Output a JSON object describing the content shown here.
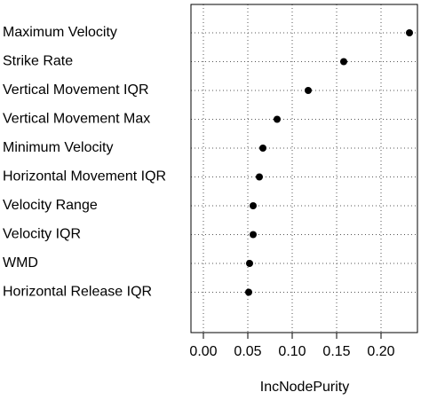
{
  "chart_data": {
    "type": "dot",
    "x_label": "IncNodePurity",
    "categories": [
      "Maximum Velocity",
      "Strike Rate",
      "Vertical Movement IQR",
      "Vertical Movement Max",
      "Minimum Velocity",
      "Horizontal Movement IQR",
      "Velocity Range",
      "Velocity IQR",
      "WMD",
      "Horizontal Release IQR"
    ],
    "values": [
      0.232,
      0.158,
      0.118,
      0.083,
      0.067,
      0.063,
      0.056,
      0.056,
      0.052,
      0.051
    ],
    "color": "#000000",
    "xlim": [
      -0.014,
      0.241
    ],
    "xticks": [
      {
        "value": 0,
        "label": "0.00"
      },
      {
        "value": 0.05,
        "label": "0.05"
      },
      {
        "value": 0.1,
        "label": "0.10"
      },
      {
        "value": 0.15,
        "label": "0.15"
      },
      {
        "value": 0.2,
        "label": "0.20"
      }
    ],
    "grid": true
  }
}
